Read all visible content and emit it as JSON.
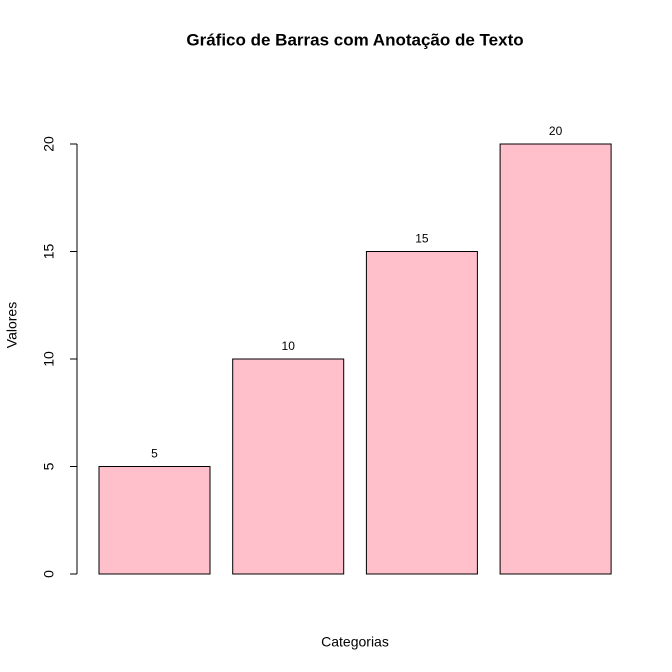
{
  "chart_data": {
    "type": "bar",
    "title": "Gráfico de Barras com Anotação de Texto",
    "x_label": "Categorias",
    "y_label": "Valores",
    "categories": [
      null,
      null,
      null,
      null
    ],
    "values": [
      5,
      10,
      15,
      20
    ],
    "color": "#ffc0cb",
    "ylim": [
      0,
      20
    ],
    "yticks": [
      0,
      5,
      10,
      15,
      20
    ],
    "grid": false
  }
}
